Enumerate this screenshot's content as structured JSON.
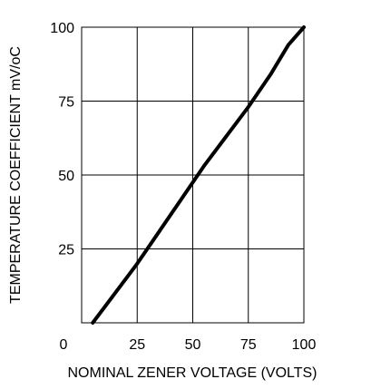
{
  "chart_data": {
    "type": "line",
    "title": "",
    "xlabel": "NOMINAL ZENER VOLTAGE (VOLTS)",
    "ylabel": "TEMPERATURE COEFFICIENT mV/oC",
    "xlim": [
      0,
      100
    ],
    "ylim": [
      0,
      100
    ],
    "grid": true,
    "x_ticks": [
      0,
      25,
      50,
      75,
      100
    ],
    "y_ticks": [
      25,
      50,
      75,
      100
    ],
    "x_tick_labels": [
      "0",
      "25",
      "50",
      "75",
      "100"
    ],
    "y_tick_labels": [
      "25",
      "50",
      "75",
      "100"
    ],
    "series": [
      {
        "x": [
          5,
          15,
          25,
          35,
          45,
          55,
          65,
          75,
          85,
          93,
          100
        ],
        "y": [
          0,
          10,
          20,
          31,
          42,
          53,
          63,
          73,
          84,
          94,
          100
        ]
      }
    ]
  }
}
